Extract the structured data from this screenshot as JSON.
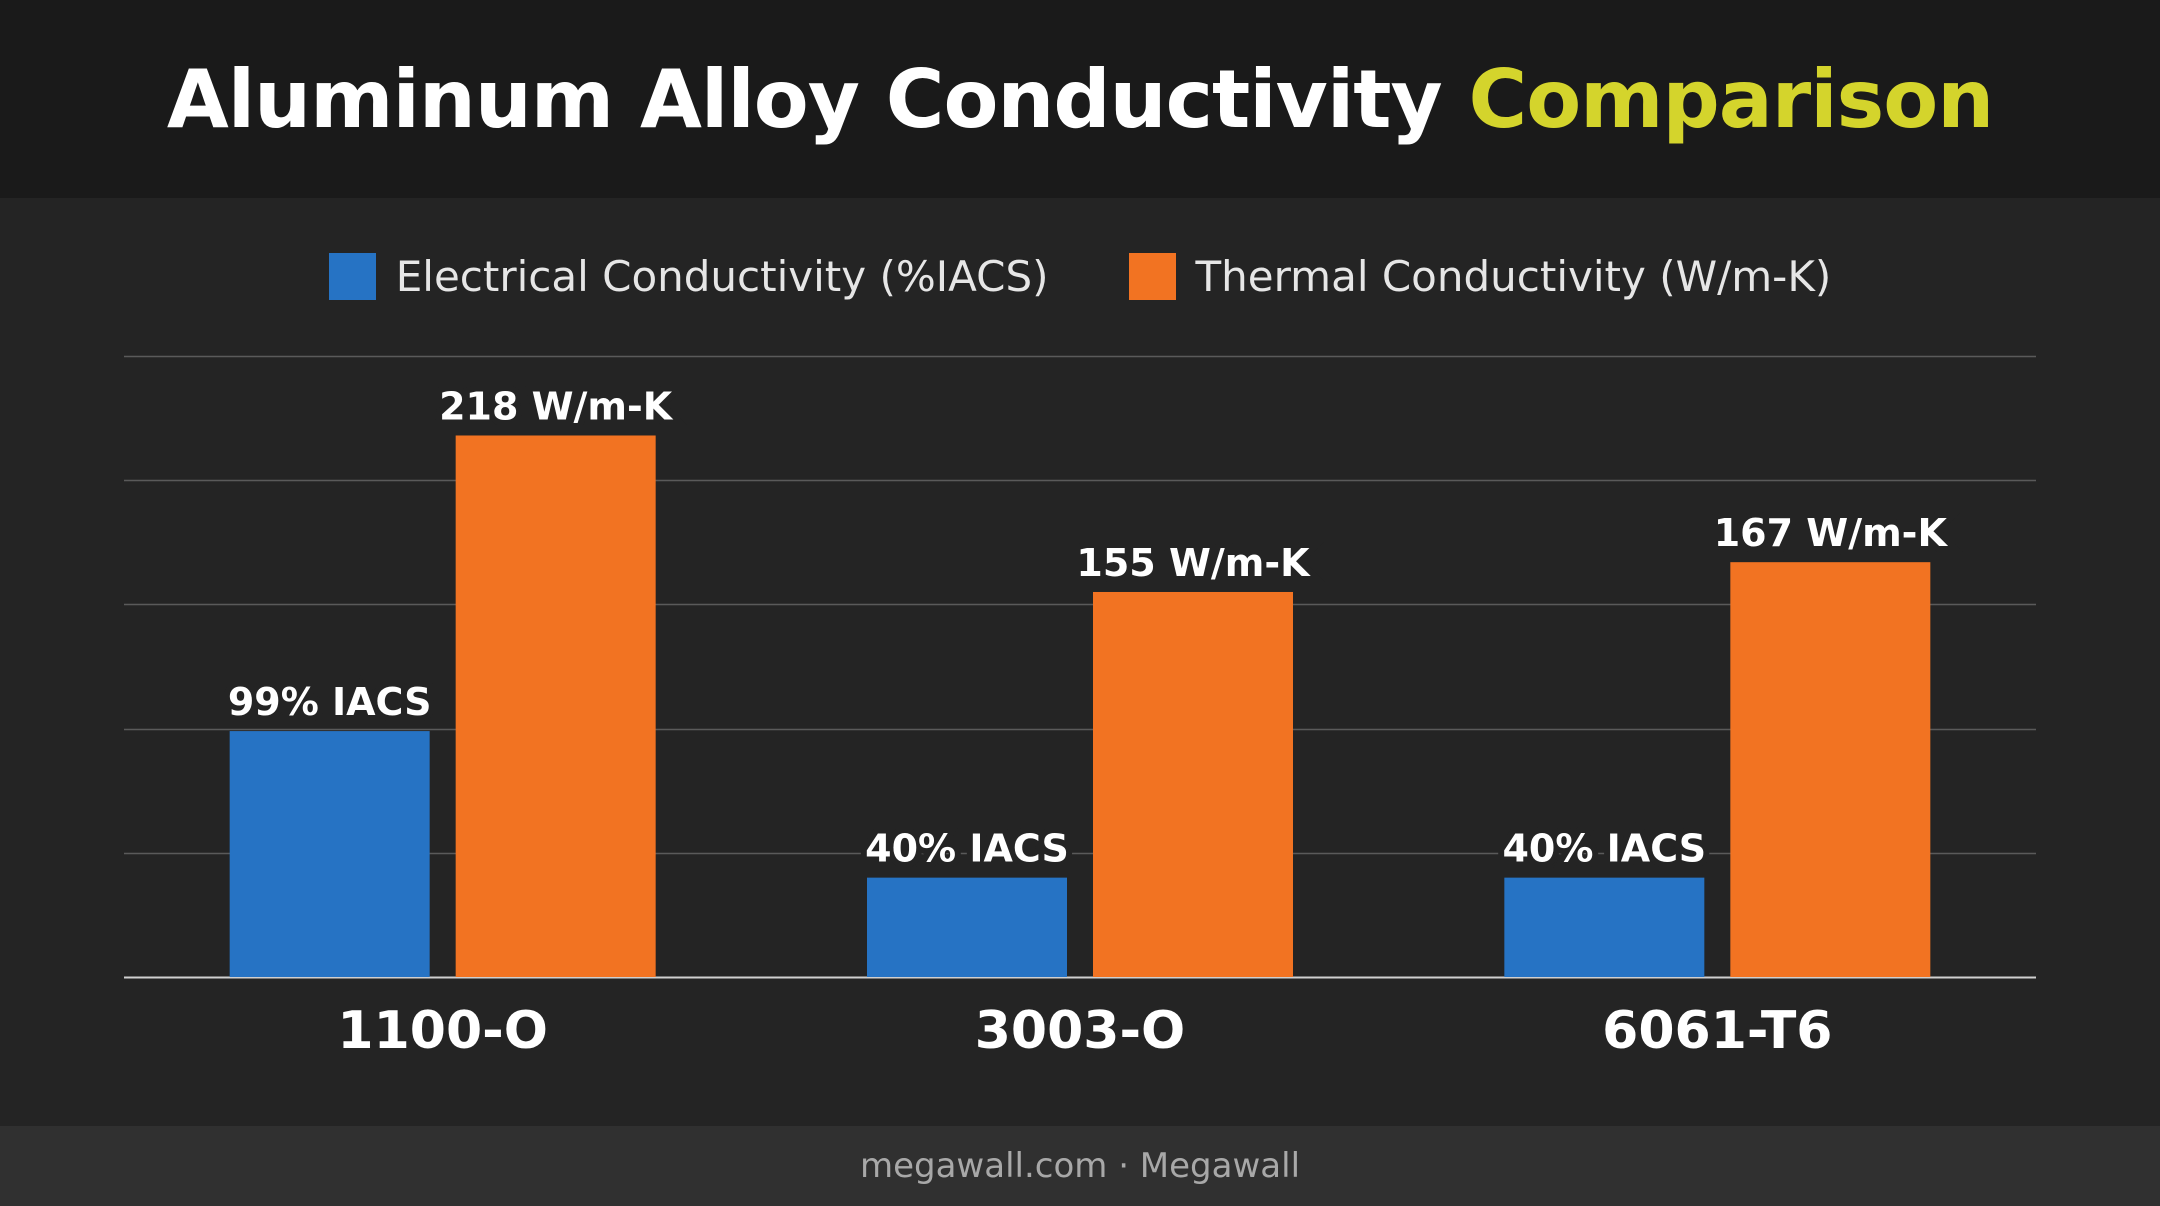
{
  "title": {
    "main": "Aluminum Alloy Conductivity",
    "highlight": "Comparison"
  },
  "source": "megawall.com · Megawall",
  "colors": {
    "electrical": "#2673c4",
    "thermal": "#f27322",
    "highlight": "#d4d42c"
  },
  "chart_data": {
    "type": "bar",
    "categories": [
      "1100-O",
      "3003-O",
      "6061-T6"
    ],
    "series": [
      {
        "name": "Electrical Conductivity (%IACS)",
        "values": [
          99,
          40,
          40
        ],
        "labels": [
          "99% IACS",
          "40% IACS",
          "40% IACS"
        ],
        "color": "#2673c4"
      },
      {
        "name": "Thermal Conductivity (W/m-K)",
        "values": [
          218,
          155,
          167
        ],
        "labels": [
          "218 W/m-K",
          "155 W/m-K",
          "167 W/m-K"
        ],
        "color": "#f27322"
      }
    ],
    "ylim": [
      0,
      250
    ],
    "gridlines": [
      0,
      50,
      100,
      150,
      200,
      250
    ],
    "grid": true,
    "legend": "top-center",
    "xlabel": "",
    "ylabel": ""
  }
}
